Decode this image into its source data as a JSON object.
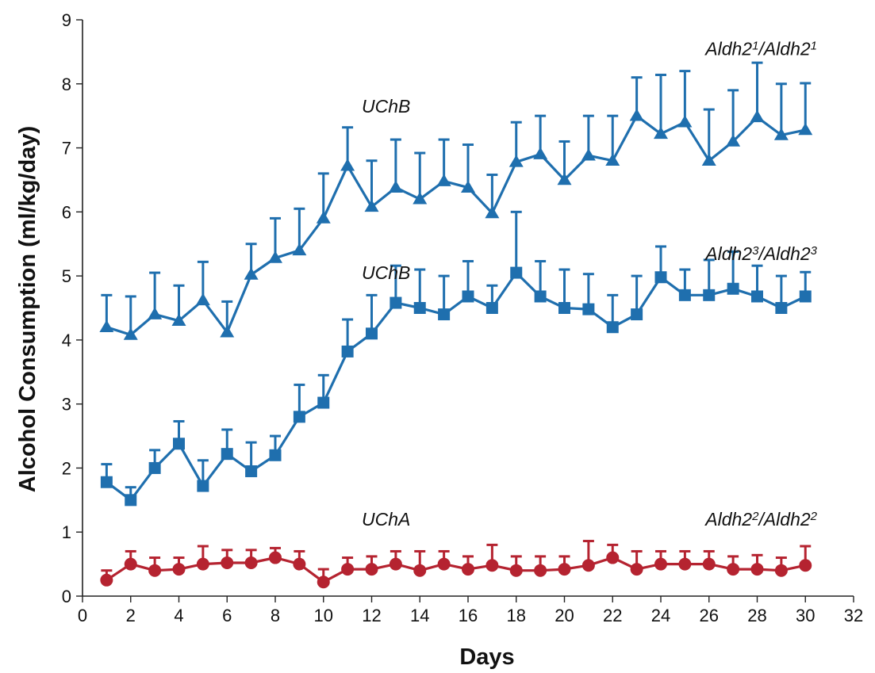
{
  "chart_data": {
    "type": "line",
    "title": "",
    "xlabel": "Days",
    "ylabel": "Alcohol Consumption (ml/kg/day)",
    "xlim": [
      0,
      32
    ],
    "ylim": [
      0,
      9
    ],
    "xticks": [
      0,
      2,
      4,
      6,
      8,
      10,
      12,
      14,
      16,
      18,
      20,
      22,
      24,
      26,
      28,
      30,
      32
    ],
    "yticks": [
      0,
      1,
      2,
      3,
      4,
      5,
      6,
      7,
      8,
      9
    ],
    "grid": false,
    "x": [
      1,
      2,
      3,
      4,
      5,
      6,
      7,
      8,
      9,
      10,
      11,
      12,
      13,
      14,
      15,
      16,
      17,
      18,
      19,
      20,
      21,
      22,
      23,
      24,
      25,
      26,
      27,
      28,
      29,
      30
    ],
    "series": [
      {
        "marker": "triangle",
        "color": "#1f6fae",
        "values": [
          4.2,
          4.08,
          4.4,
          4.3,
          4.62,
          4.12,
          5.02,
          5.28,
          5.4,
          5.9,
          6.72,
          6.08,
          6.38,
          6.2,
          6.48,
          6.38,
          5.98,
          6.78,
          6.9,
          6.5,
          6.88,
          6.8,
          7.5,
          7.22,
          7.4,
          6.8,
          7.1,
          7.48,
          7.2,
          7.28
        ],
        "error": [
          0.5,
          0.6,
          0.65,
          0.55,
          0.6,
          0.48,
          0.48,
          0.62,
          0.65,
          0.7,
          0.6,
          0.72,
          0.75,
          0.72,
          0.65,
          0.67,
          0.6,
          0.62,
          0.6,
          0.6,
          0.62,
          0.7,
          0.6,
          0.92,
          0.8,
          0.8,
          0.8,
          0.85,
          0.8,
          0.73
        ]
      },
      {
        "marker": "square",
        "color": "#1f6fae",
        "values": [
          1.78,
          1.5,
          2.0,
          2.38,
          1.72,
          2.22,
          1.95,
          2.2,
          2.8,
          3.02,
          3.82,
          4.1,
          4.58,
          4.5,
          4.4,
          4.68,
          4.5,
          5.05,
          4.68,
          4.5,
          4.48,
          4.2,
          4.4,
          4.98,
          4.7,
          4.7,
          4.8,
          4.68,
          4.5,
          4.68
        ],
        "error": [
          0.28,
          0.2,
          0.28,
          0.35,
          0.4,
          0.38,
          0.45,
          0.3,
          0.5,
          0.43,
          0.5,
          0.6,
          0.58,
          0.6,
          0.6,
          0.55,
          0.35,
          0.95,
          0.55,
          0.6,
          0.55,
          0.5,
          0.6,
          0.48,
          0.4,
          0.55,
          0.58,
          0.48,
          0.5,
          0.38
        ]
      },
      {
        "marker": "circle",
        "color": "#b52330",
        "values": [
          0.25,
          0.5,
          0.4,
          0.42,
          0.5,
          0.52,
          0.52,
          0.6,
          0.5,
          0.22,
          0.42,
          0.42,
          0.5,
          0.4,
          0.5,
          0.42,
          0.48,
          0.4,
          0.4,
          0.42,
          0.48,
          0.6,
          0.42,
          0.5,
          0.5,
          0.5,
          0.42,
          0.42,
          0.4,
          0.48
        ],
        "error": [
          0.15,
          0.2,
          0.2,
          0.18,
          0.28,
          0.2,
          0.2,
          0.15,
          0.2,
          0.2,
          0.18,
          0.2,
          0.2,
          0.3,
          0.2,
          0.2,
          0.32,
          0.22,
          0.22,
          0.2,
          0.38,
          0.2,
          0.28,
          0.2,
          0.2,
          0.2,
          0.2,
          0.22,
          0.2,
          0.3
        ]
      }
    ],
    "annotations": [
      {
        "text": "UChB",
        "x": 12.6,
        "y": 7.55
      },
      {
        "text": "UChB",
        "x": 12.6,
        "y": 4.95
      },
      {
        "text": "UChA",
        "x": 12.6,
        "y": 1.1
      }
    ],
    "genotype_labels": [
      {
        "base": "Aldh2",
        "sup": "1",
        "y": 8.45
      },
      {
        "base": "Aldh2",
        "sup": "3",
        "y": 5.25
      },
      {
        "base": "Aldh2",
        "sup": "2",
        "y": 1.1
      }
    ],
    "genotype_separator": "/"
  }
}
